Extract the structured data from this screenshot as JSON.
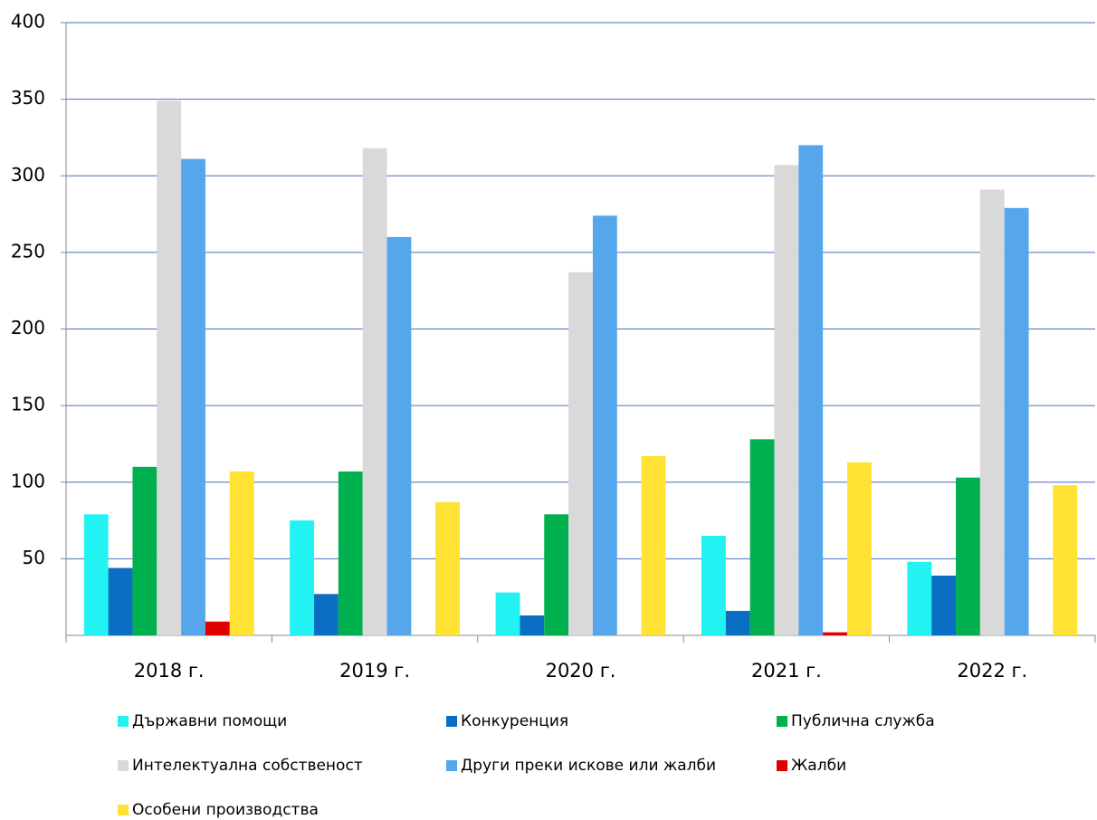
{
  "chart_data": {
    "type": "bar",
    "categories": [
      "2018 г.",
      "2019 г.",
      "2020 г.",
      "2021 г.",
      "2022 г."
    ],
    "series": [
      {
        "name": "Държавни помощи",
        "color": "#22f2f2",
        "values": [
          79,
          75,
          28,
          65,
          48
        ]
      },
      {
        "name": "Конкуренция",
        "color": "#0a6fc2",
        "values": [
          44,
          27,
          13,
          16,
          39
        ]
      },
      {
        "name": "Публична служба",
        "color": "#00b04f",
        "values": [
          110,
          107,
          79,
          128,
          103
        ]
      },
      {
        "name": "Интелектуална собственост",
        "color": "#d9d9d9",
        "values": [
          349,
          318,
          237,
          307,
          291
        ]
      },
      {
        "name": "Други преки искове или жалби",
        "color": "#55a6ea",
        "values": [
          311,
          260,
          274,
          320,
          279
        ]
      },
      {
        "name": "Жалби",
        "color": "#e00000",
        "values": [
          9,
          0,
          0,
          2,
          0
        ]
      },
      {
        "name": "Особени производства",
        "color": "#ffe233",
        "values": [
          107,
          87,
          117,
          113,
          98
        ]
      }
    ],
    "ylim": [
      0,
      400
    ],
    "yticks": [
      50,
      100,
      150,
      200,
      250,
      300,
      350,
      400
    ],
    "grid": true
  }
}
